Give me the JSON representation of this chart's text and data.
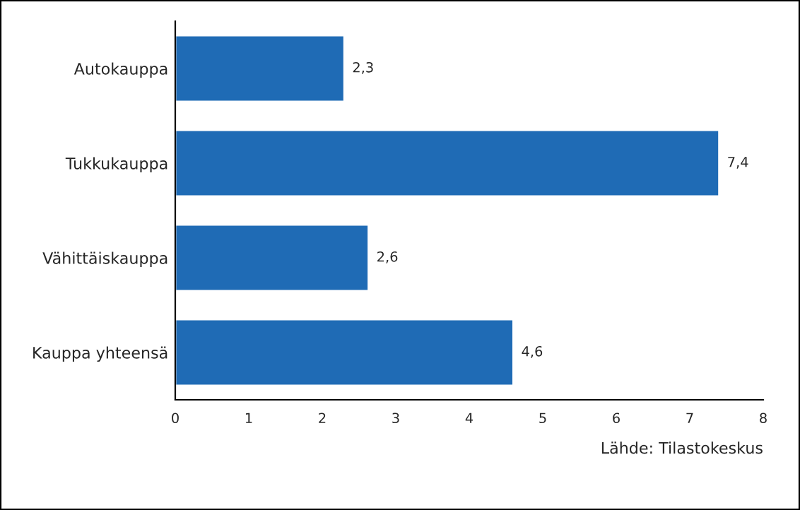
{
  "chart_data": {
    "type": "bar",
    "orientation": "horizontal",
    "categories": [
      "Autokauppa",
      "Tukkukauppa",
      "Vähittäiskauppa",
      "Kauppa yhteensä"
    ],
    "values": [
      2.3,
      7.4,
      2.63,
      4.6
    ],
    "value_labels": [
      "2,3",
      "7,4",
      "2,6",
      "4,6"
    ],
    "color": "#1f6bb5",
    "xlim": [
      0,
      8
    ],
    "xticks": [
      0,
      1,
      2,
      3,
      4,
      5,
      6,
      7,
      8
    ],
    "grid": false,
    "annotations": [
      "Lähde: Tilastokeskus"
    ]
  }
}
